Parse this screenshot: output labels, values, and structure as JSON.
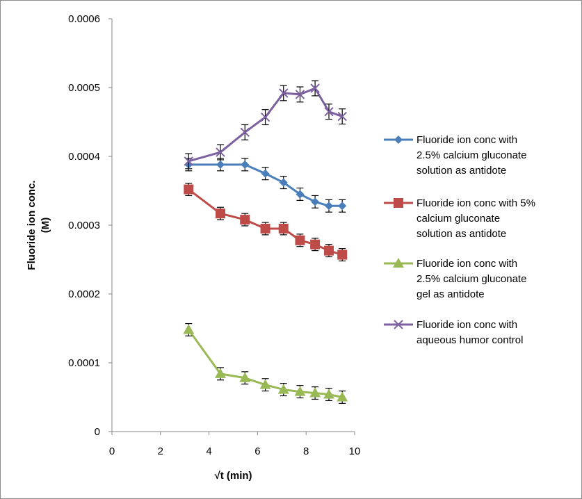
{
  "chart_data": {
    "type": "line",
    "xlabel": "√t (min)",
    "ylabel": [
      "Fluoride ion conc.",
      "(M)"
    ],
    "xlim": [
      0,
      10
    ],
    "ylim": [
      0,
      0.0006
    ],
    "xticks": [
      "0",
      "2",
      "4",
      "6",
      "8",
      "10"
    ],
    "yticks": [
      "0",
      "0.0001",
      "0.0002",
      "0.0003",
      "0.0004",
      "0.0005",
      "0.0006"
    ],
    "grid": false,
    "legend_position": "right",
    "error_bars": true,
    "x": [
      3.16,
      4.47,
      5.48,
      6.32,
      7.07,
      7.75,
      8.37,
      8.94,
      9.49
    ],
    "series": [
      {
        "name": "Fluoride ion conc with 2.5% calcium gluconate solution as antidote",
        "legend_lines": [
          "Fluoride ion conc with",
          "2.5% calcium gluconate",
          "solution as antidote"
        ],
        "color": "#4a7ebb",
        "marker": "diamond",
        "values": [
          0.000388,
          0.000388,
          0.000388,
          0.000375,
          0.000362,
          0.000345,
          0.000334,
          0.000328,
          0.000328
        ],
        "errors": [
          9e-06,
          9e-06,
          9e-06,
          9e-06,
          9e-06,
          9e-06,
          9e-06,
          9e-06,
          9e-06
        ]
      },
      {
        "name": "Fluoride ion conc with 5% calcium gluconate solution as antidote",
        "legend_lines": [
          "Fluoride ion conc with 5%",
          "calcium gluconate",
          "solution as antidote"
        ],
        "color": "#be4b48",
        "marker": "square",
        "values": [
          0.000352,
          0.000317,
          0.000308,
          0.000295,
          0.000295,
          0.000278,
          0.000272,
          0.000263,
          0.000257
        ],
        "errors": [
          9e-06,
          9e-06,
          9e-06,
          9e-06,
          9e-06,
          9e-06,
          9e-06,
          9e-06,
          9e-06
        ]
      },
      {
        "name": "Fluoride ion conc with 2.5% calcium gluconate gel as antidote",
        "legend_lines": [
          "Fluoride ion conc with",
          "2.5% calcium gluconate",
          "gel as antidote"
        ],
        "color": "#98b954",
        "marker": "triangle",
        "values": [
          0.000148,
          8.4e-05,
          7.8e-05,
          6.8e-05,
          6.1e-05,
          5.8e-05,
          5.6e-05,
          5.4e-05,
          5e-05
        ],
        "errors": [
          9e-06,
          9e-06,
          9e-06,
          9e-06,
          9e-06,
          9e-06,
          9e-06,
          9e-06,
          9e-06
        ]
      },
      {
        "name": "Fluoride ion conc with aqueous humor control",
        "legend_lines": [
          "Fluoride ion conc with",
          "aqueous humor control"
        ],
        "color": "#7d60a0",
        "marker": "x",
        "values": [
          0.000393,
          0.000406,
          0.000435,
          0.000457,
          0.000492,
          0.00049,
          0.000499,
          0.000465,
          0.000458
        ],
        "errors": [
          1.1e-05,
          1.1e-05,
          1.1e-05,
          1.1e-05,
          1.1e-05,
          1.1e-05,
          1.1e-05,
          1.1e-05,
          1.1e-05
        ]
      }
    ]
  }
}
